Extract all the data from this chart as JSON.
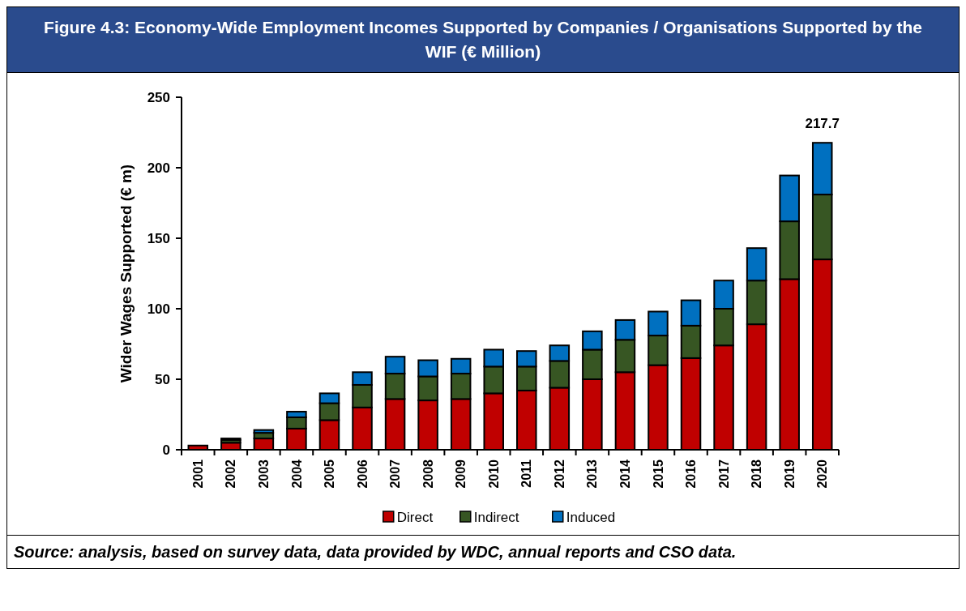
{
  "chart_data": {
    "type": "bar",
    "title": "Figure 4.3: Economy-Wide Employment Incomes Supported by Companies / Organisations Supported by the WIF (€ Million)",
    "ylabel": "Wider Wages Supported (€ m)",
    "annotations": [
      "Source: analysis, based on survey data, data provided by WDC, annual reports and CSO data."
    ],
    "categories": [
      "2001",
      "2002",
      "2003",
      "2004",
      "2005",
      "2006",
      "2007",
      "2008",
      "2009",
      "2010",
      "2011",
      "2012",
      "2013",
      "2014",
      "2015",
      "2016",
      "2017",
      "2018",
      "2019",
      "2020"
    ],
    "stacked": true,
    "series": [
      {
        "name": "Direct",
        "color": "#c00000",
        "values": [
          3,
          5,
          8,
          15,
          21,
          30,
          36,
          35,
          36,
          40,
          42,
          44,
          50,
          55,
          60,
          65,
          74,
          89,
          121,
          135
        ]
      },
      {
        "name": "Indirect",
        "color": "#375623",
        "values": [
          null,
          2,
          4,
          8,
          12,
          16,
          18,
          17,
          18,
          19,
          17,
          19,
          21,
          23,
          21,
          23,
          26,
          31,
          41,
          46
        ]
      },
      {
        "name": "Induced",
        "color": "#0070c0",
        "values": [
          null,
          1,
          2,
          4,
          7,
          9,
          12,
          11.5,
          10.5,
          12,
          11,
          11,
          13,
          14,
          17,
          18,
          20,
          23,
          32.5,
          36.7
        ]
      }
    ],
    "totals": [
      null,
      null,
      null,
      null,
      null,
      null,
      null,
      null,
      null,
      null,
      null,
      null,
      null,
      null,
      null,
      null,
      null,
      null,
      null,
      "217.7"
    ],
    "ylim": [
      0,
      250
    ],
    "yticks": [
      0,
      50,
      100,
      150,
      200,
      250
    ],
    "grid": false,
    "legend": "bottom"
  }
}
